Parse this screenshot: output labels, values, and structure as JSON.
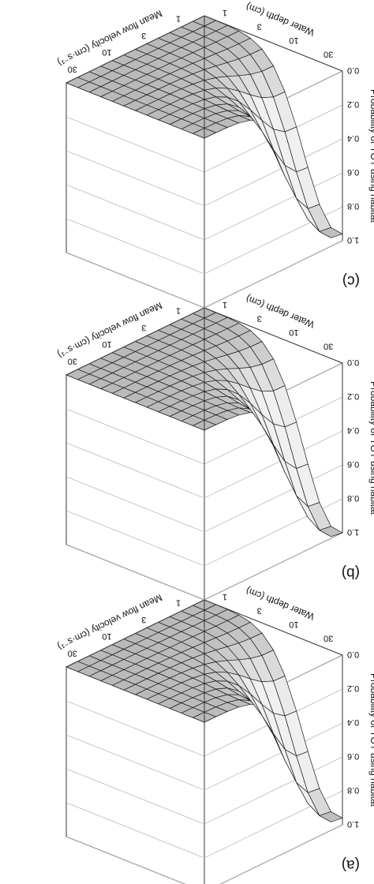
{
  "figure": {
    "orientation": "rotated 180 degrees"
  },
  "chart_data": [
    {
      "type": "surface",
      "panel_label": "(a)",
      "zlabel": "Probability of YOY using habitat",
      "xlabel": "Water depth (cm)",
      "ylabel": "Mean flow velocity (cm·s⁻¹)",
      "z_ticks": [
        "0.0",
        "0.2",
        "0.4",
        "0.6",
        "0.8",
        "1.0"
      ],
      "x_ticks": [
        "30",
        "10",
        "3",
        "1"
      ],
      "y_ticks": [
        "1",
        "3",
        "10",
        "30"
      ],
      "zlim": [
        0,
        1
      ],
      "grid": true,
      "z_min_plateau": 0.0,
      "z_peak": 0.96,
      "notes_visible": ""
    },
    {
      "type": "surface",
      "panel_label": "(b)",
      "zlabel": "Probability of YOY using habitat",
      "xlabel": "Water depth (cm)",
      "ylabel": "Mean flow velocity (cm·s⁻¹)",
      "z_ticks": [
        "0.0",
        "0.2",
        "0.4",
        "0.6",
        "0.8",
        "1.0"
      ],
      "x_ticks": [
        "30",
        "10",
        "3",
        "1"
      ],
      "y_ticks": [
        "1",
        "3",
        "10",
        "30"
      ],
      "zlim": [
        0,
        1
      ],
      "grid": true,
      "z_min_plateau": 0.0,
      "z_peak": 1.0,
      "notes_visible": ""
    },
    {
      "type": "surface",
      "panel_label": "(c)",
      "zlabel": "Probability of YOY using habitat",
      "xlabel": "Water depth (cm)",
      "ylabel": "Mean flow velocity (cm·s⁻¹)",
      "z_ticks": [
        "0.0",
        "0.2",
        "0.4",
        "0.6",
        "0.8",
        "1.0"
      ],
      "x_ticks": [
        "30",
        "10",
        "3",
        "1"
      ],
      "y_ticks": [
        "1",
        "3",
        "10",
        "30"
      ],
      "zlim": [
        0,
        1
      ],
      "grid": true,
      "z_min_plateau": 0.0,
      "z_peak": 0.96,
      "notes_visible": ""
    }
  ],
  "colors": {
    "surface_light": "#f0f0f0",
    "surface_dark": "#6e6e6e",
    "mesh": "#1a1a1a",
    "box": "#333333"
  }
}
